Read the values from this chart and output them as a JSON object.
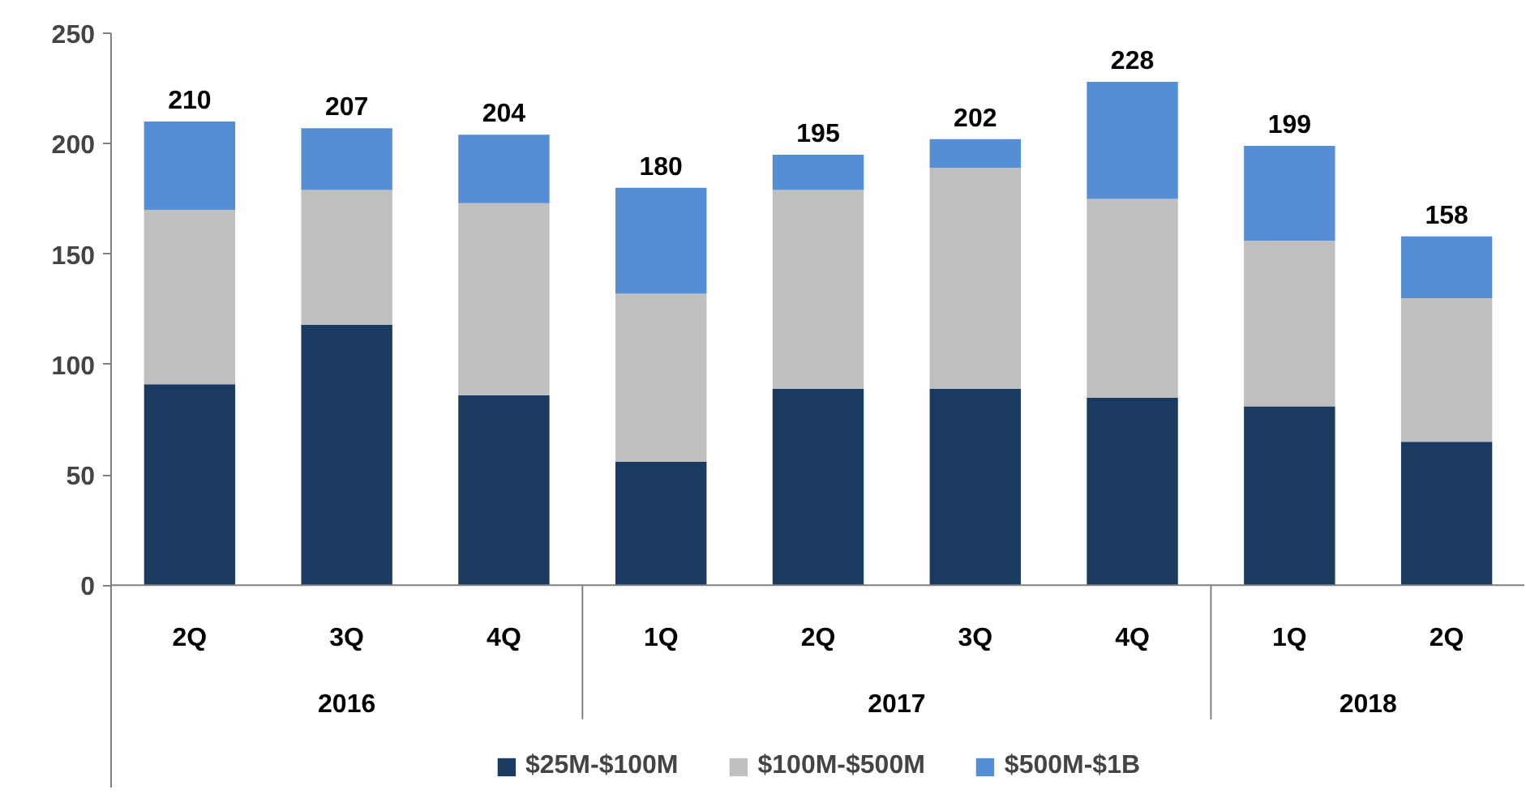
{
  "chart_data": {
    "type": "bar",
    "stacked": true,
    "categories": [
      "2Q",
      "3Q",
      "4Q",
      "1Q",
      "2Q",
      "3Q",
      "4Q",
      "1Q",
      "2Q"
    ],
    "series": [
      {
        "name": "$25M-$100M",
        "color": "#1a3a5f",
        "values": [
          91,
          118,
          86,
          56,
          89,
          89,
          85,
          81,
          65
        ]
      },
      {
        "name": "$100M-$500M",
        "color": "#bfbfbf",
        "values": [
          79,
          61,
          87,
          76,
          90,
          100,
          90,
          75,
          65
        ]
      },
      {
        "name": "$500M-$1B",
        "color": "#558ed5",
        "values": [
          40,
          28,
          31,
          48,
          16,
          13,
          53,
          43,
          28
        ]
      }
    ],
    "totals": [
      "210",
      "207",
      "204",
      "180",
      "195",
      "202",
      "228",
      "199",
      "158"
    ],
    "annotations": [
      "2016",
      "2017",
      "2018"
    ],
    "ylim": [
      0,
      250
    ],
    "yticks": [
      0,
      50,
      100,
      150,
      200,
      250
    ],
    "grid": false,
    "legend": "bottom"
  }
}
